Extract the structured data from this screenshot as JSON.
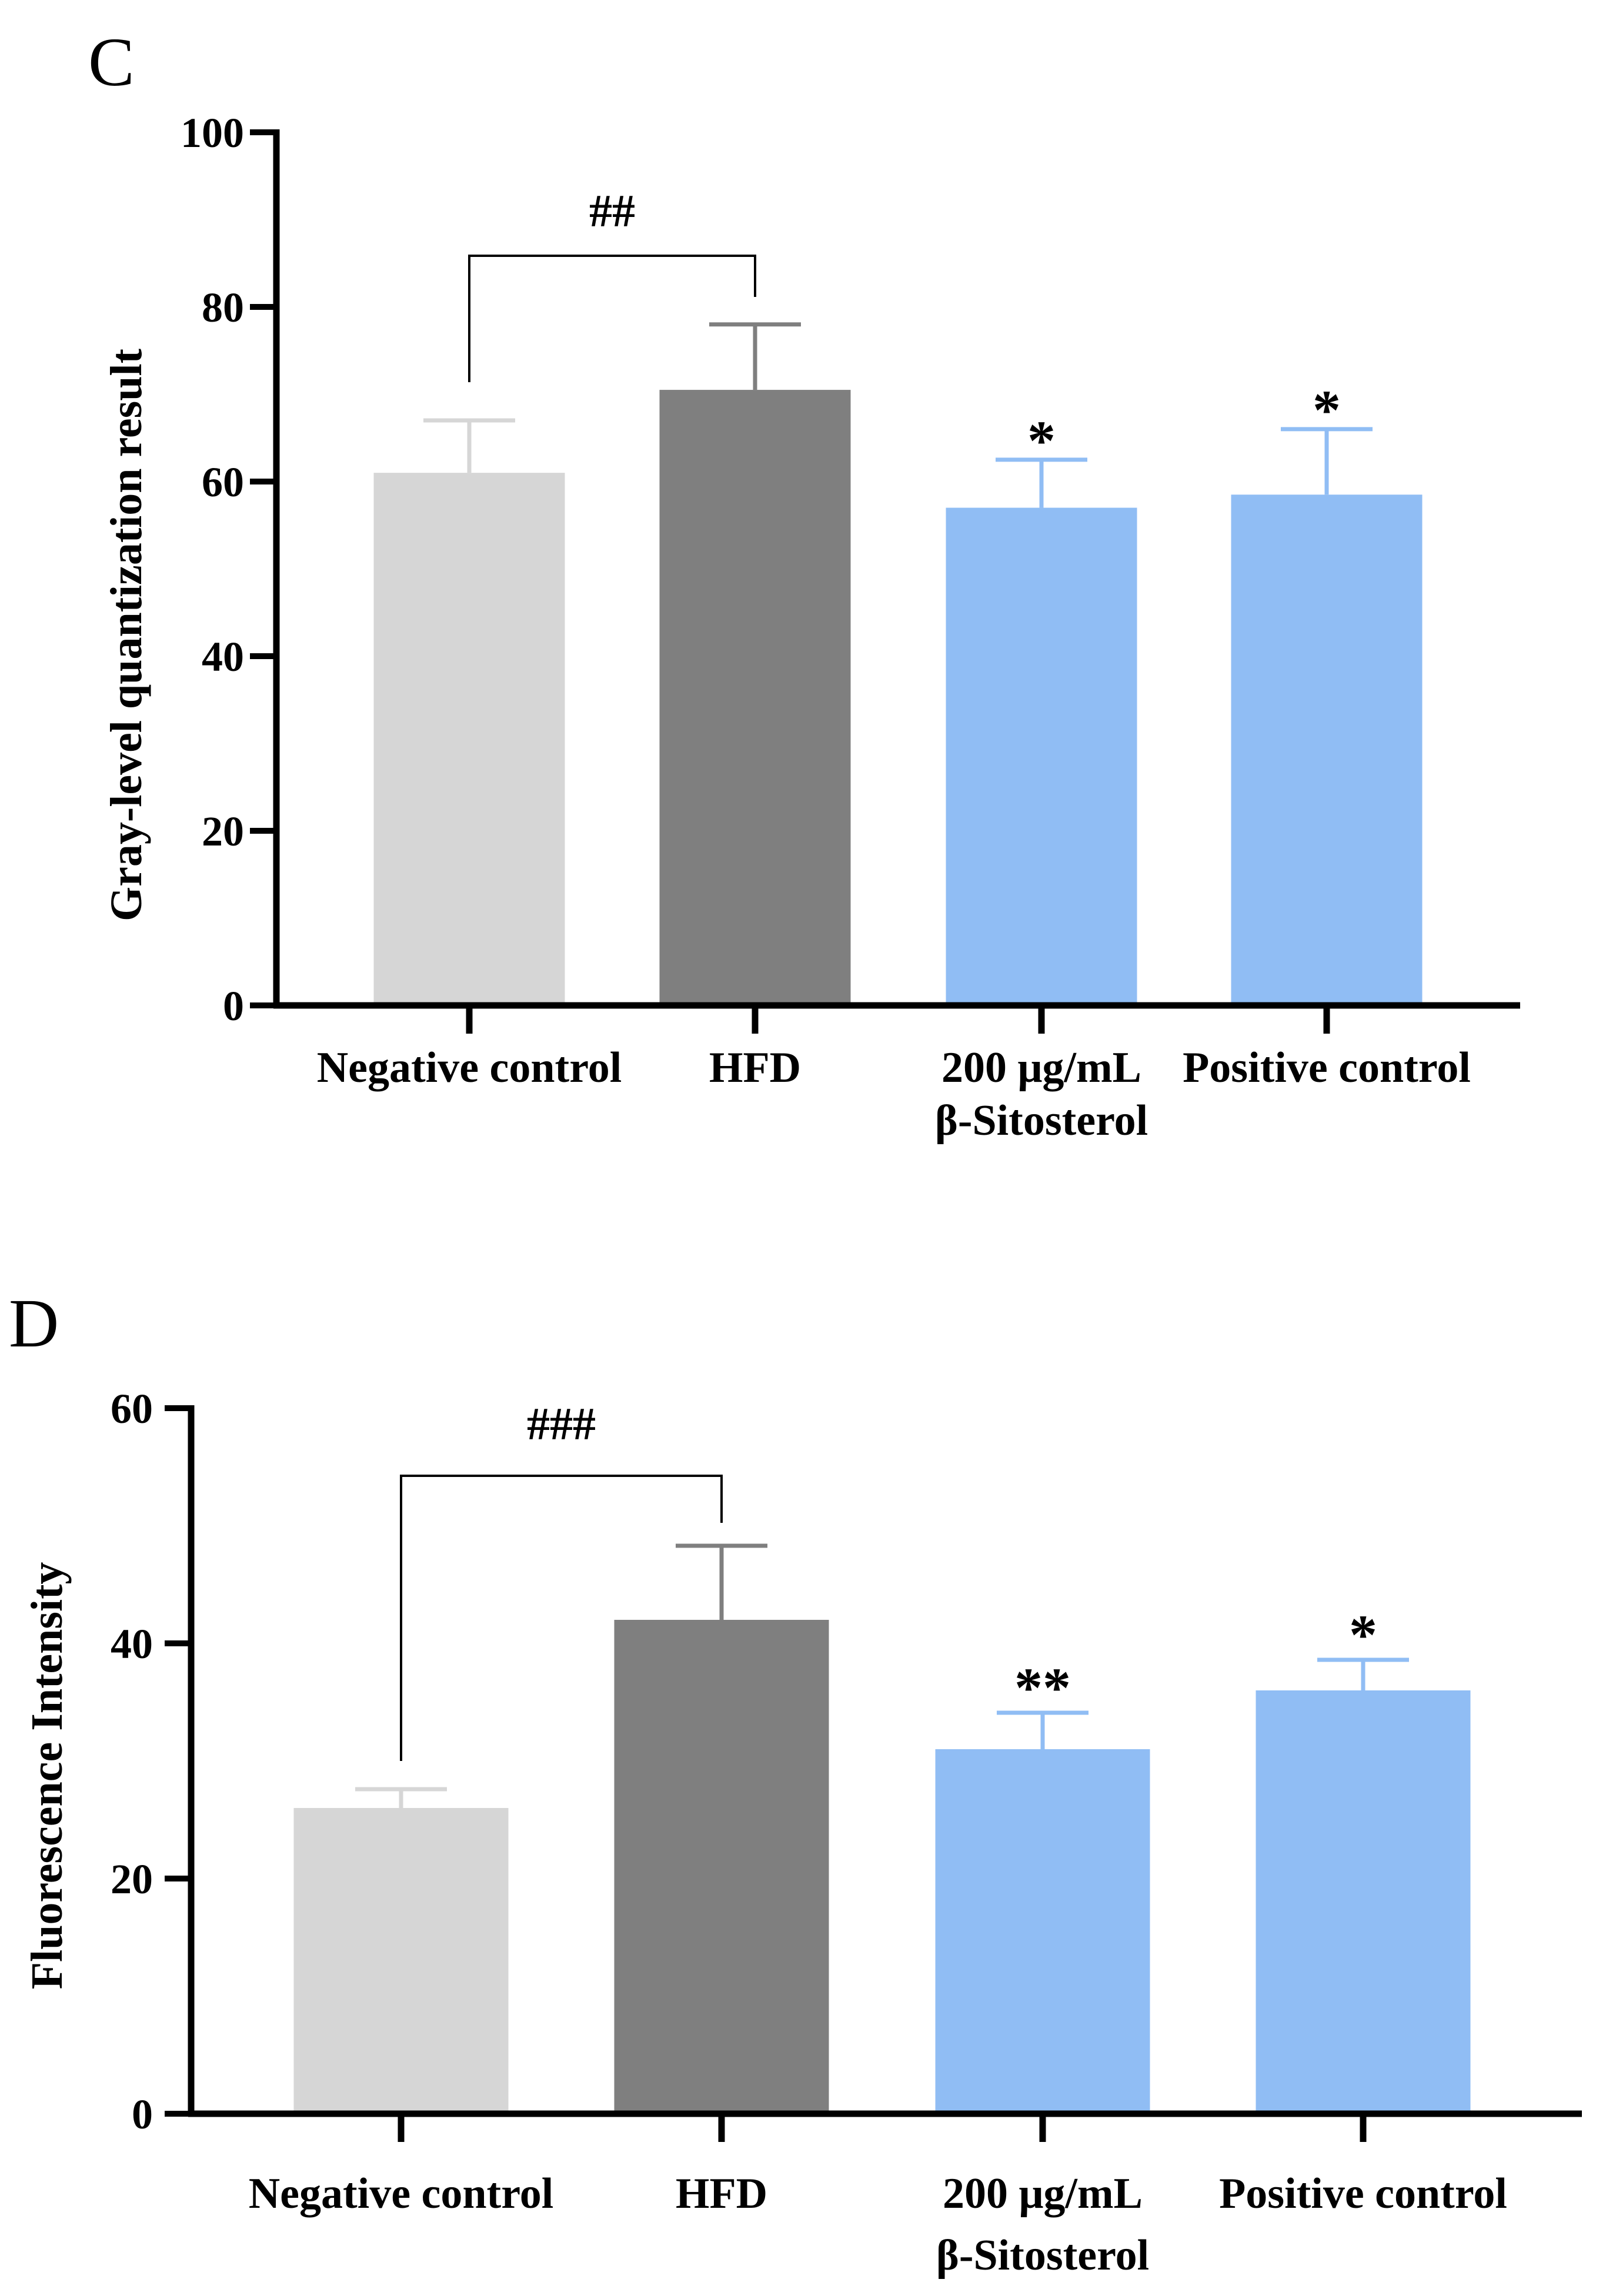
{
  "chart_data": [
    {
      "panel": "C",
      "type": "bar",
      "ylabel": "Gray-level quantization result",
      "ylim": [
        0,
        100
      ],
      "yticks": [
        0,
        20,
        40,
        60,
        80,
        100
      ],
      "categories": [
        {
          "label": "Negative control"
        },
        {
          "label": "HFD"
        },
        {
          "label": "200 μg/mL",
          "label2": "β-Sitosterol"
        },
        {
          "label": "Positive control"
        }
      ],
      "values": [
        61,
        70.5,
        57,
        58.5
      ],
      "errors": [
        6,
        7.5,
        5.5,
        7.5
      ],
      "colors": [
        "#d6d6d6",
        "#7f7f7f",
        "#90bdf4",
        "#90bdf4"
      ],
      "error_colors": [
        "#d6d6d6",
        "#7f7f7f",
        "#90bdf4",
        "#90bdf4"
      ],
      "significance": [
        "",
        "",
        "*",
        "*"
      ],
      "bracket": {
        "from": 0,
        "to": 1,
        "label": "##"
      }
    },
    {
      "panel": "D",
      "type": "bar",
      "ylabel": "Fluorescence Intensity",
      "ylim": [
        0,
        60
      ],
      "yticks": [
        0,
        20,
        40,
        60
      ],
      "categories": [
        {
          "label": "Negative control"
        },
        {
          "label": "HFD"
        },
        {
          "label": "200 μg/mL",
          "label2": "β-Sitosterol"
        },
        {
          "label": "Positive control"
        }
      ],
      "values": [
        26,
        42,
        31,
        36
      ],
      "errors": [
        1.6,
        6.3,
        3.1,
        2.6
      ],
      "colors": [
        "#d6d6d6",
        "#7f7f7f",
        "#90bdf4",
        "#90bdf4"
      ],
      "error_colors": [
        "#d6d6d6",
        "#7f7f7f",
        "#90bdf4",
        "#90bdf4"
      ],
      "significance": [
        "",
        "",
        "**",
        "*"
      ],
      "bracket": {
        "from": 0,
        "to": 1,
        "label": "###"
      }
    }
  ]
}
